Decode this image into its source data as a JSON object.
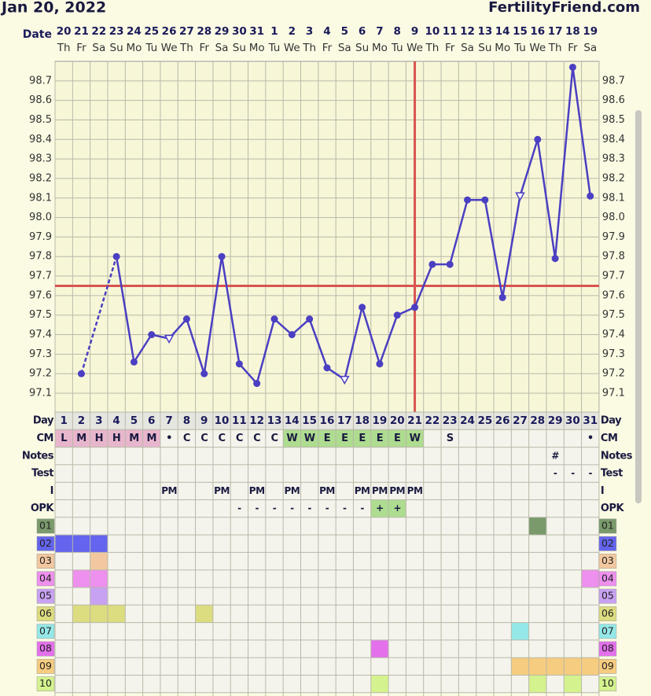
{
  "header": {
    "date": "Jan 20, 2022",
    "site": "FertilityFriend.com"
  },
  "chart_data": {
    "type": "line",
    "date_label": "Date",
    "dates": [
      "20",
      "21",
      "22",
      "23",
      "24",
      "25",
      "26",
      "27",
      "28",
      "29",
      "30",
      "31",
      "1",
      "2",
      "3",
      "4",
      "5",
      "6",
      "7",
      "8",
      "9",
      "10",
      "11",
      "12",
      "13",
      "14",
      "15",
      "16",
      "17",
      "18",
      "19"
    ],
    "weekdays": [
      "Th",
      "Fr",
      "Sa",
      "Su",
      "Mo",
      "Tu",
      "We",
      "Th",
      "Fr",
      "Sa",
      "Su",
      "Mo",
      "Tu",
      "We",
      "Th",
      "Fr",
      "Sa",
      "Su",
      "Mo",
      "Tu",
      "We",
      "Th",
      "Fr",
      "Sa",
      "Su",
      "Mo",
      "Tu",
      "We",
      "Th",
      "Fr",
      "Sa"
    ],
    "days": [
      1,
      2,
      3,
      4,
      5,
      6,
      7,
      8,
      9,
      10,
      11,
      12,
      13,
      14,
      15,
      16,
      17,
      18,
      19,
      20,
      21,
      22,
      23,
      24,
      25,
      26,
      27,
      28,
      29,
      30,
      31
    ],
    "values": [
      null,
      97.2,
      null,
      97.8,
      97.26,
      97.4,
      97.38,
      97.48,
      97.2,
      97.8,
      97.25,
      97.15,
      97.48,
      97.4,
      97.48,
      97.23,
      97.17,
      97.54,
      97.25,
      97.5,
      97.54,
      97.76,
      97.76,
      98.09,
      98.09,
      97.59,
      98.11,
      98.4,
      97.79,
      98.77,
      98.11
    ],
    "markers": [
      null,
      "circle",
      null,
      "circle",
      "circle",
      "circle",
      "triangle",
      "circle",
      "circle",
      "circle",
      "circle",
      "circle",
      "circle",
      "circle",
      "circle",
      "circle",
      "triangle",
      "circle",
      "circle",
      "circle",
      "circle",
      "circle",
      "circle",
      "circle",
      "circle",
      "circle",
      "triangle",
      "circle",
      "circle",
      "circle",
      "circle"
    ],
    "color": "#4b3fc2",
    "ylim": [
      97.0,
      98.8
    ],
    "yticks": [
      97.1,
      97.2,
      97.3,
      97.4,
      97.5,
      97.6,
      97.7,
      97.8,
      97.9,
      {
        "value": 98,
        "label": "98.0"
      },
      98.1,
      98.2,
      98.3,
      98.4,
      98.5,
      98.6,
      98.7
    ],
    "coverline": 97.65,
    "ovulation_day": 21,
    "line_color": "#d9534f",
    "grid": true
  },
  "rows": {
    "labels": {
      "day": "Day",
      "cm": "CM",
      "notes": "Notes",
      "test": "Test",
      "i": "I",
      "opk": "OPK"
    },
    "cm": [
      "L",
      "M",
      "H",
      "H",
      "M",
      "M",
      "•",
      "C",
      "C",
      "C",
      "C",
      "C",
      "C",
      "W",
      "W",
      "E",
      "E",
      "E",
      "E",
      "E",
      "W",
      null,
      "S",
      null,
      null,
      null,
      null,
      null,
      null,
      null,
      "•"
    ],
    "cm_fill": [
      "#e8b6cc",
      "#e8b6cc",
      "#e8b6cc",
      "#e8b6cc",
      "#e8b6cc",
      "#e8b6cc",
      null,
      null,
      null,
      null,
      null,
      null,
      null,
      "#aedc90",
      "#aedc90",
      "#aedc90",
      "#aedc90",
      "#aedc90",
      "#aedc90",
      "#aedc90",
      "#aedc90",
      null,
      null,
      null,
      null,
      null,
      null,
      null,
      null,
      null,
      null
    ],
    "notes": [
      null,
      null,
      null,
      null,
      null,
      null,
      null,
      null,
      null,
      null,
      null,
      null,
      null,
      null,
      null,
      null,
      null,
      null,
      null,
      null,
      null,
      null,
      null,
      null,
      null,
      null,
      null,
      null,
      "#",
      null,
      null
    ],
    "test": [
      null,
      null,
      null,
      null,
      null,
      null,
      null,
      null,
      null,
      null,
      null,
      null,
      null,
      null,
      null,
      null,
      null,
      null,
      null,
      null,
      null,
      null,
      null,
      null,
      null,
      null,
      null,
      null,
      "-",
      "-",
      "-"
    ],
    "i": [
      null,
      null,
      null,
      null,
      null,
      null,
      "PM",
      null,
      null,
      "PM",
      null,
      "PM",
      null,
      "PM",
      null,
      "PM",
      null,
      "PM",
      "PM",
      "PM",
      "PM",
      null,
      null,
      null,
      null,
      null,
      null,
      null,
      null,
      null,
      null
    ],
    "opk": [
      null,
      null,
      null,
      null,
      null,
      null,
      null,
      null,
      null,
      null,
      "-",
      "-",
      "-",
      "-",
      "-",
      "-",
      "-",
      "-",
      "+",
      "+",
      null,
      null,
      null,
      null,
      null,
      null,
      null,
      null,
      null,
      null,
      null
    ],
    "opk_fill": [
      null,
      null,
      null,
      null,
      null,
      null,
      null,
      null,
      null,
      null,
      null,
      null,
      null,
      null,
      null,
      null,
      null,
      null,
      "#aedc90",
      "#aedc90",
      null,
      null,
      null,
      null,
      null,
      null,
      null,
      null,
      null,
      null,
      null
    ],
    "symptoms": [
      {
        "label": "01",
        "color": "#7a9a6c",
        "days": [
          28
        ]
      },
      {
        "label": "02",
        "color": "#6464ee",
        "days": [
          1,
          2,
          3
        ]
      },
      {
        "label": "03",
        "color": "#f3c8a0",
        "days": [
          3
        ]
      },
      {
        "label": "04",
        "color": "#ee90ee",
        "days": [
          2,
          3,
          31
        ]
      },
      {
        "label": "05",
        "color": "#c8a2f2",
        "days": [
          3
        ]
      },
      {
        "label": "06",
        "color": "#dcdc80",
        "days": [
          2,
          3,
          4,
          9
        ]
      },
      {
        "label": "07",
        "color": "#96e8e8",
        "days": [
          27
        ]
      },
      {
        "label": "08",
        "color": "#e470ec",
        "days": [
          19
        ]
      },
      {
        "label": "09",
        "color": "#f6cc80",
        "days": [
          27,
          28,
          29,
          30,
          31
        ]
      },
      {
        "label": "10",
        "color": "#d4f28e",
        "days": [
          19,
          28,
          30
        ]
      }
    ]
  }
}
